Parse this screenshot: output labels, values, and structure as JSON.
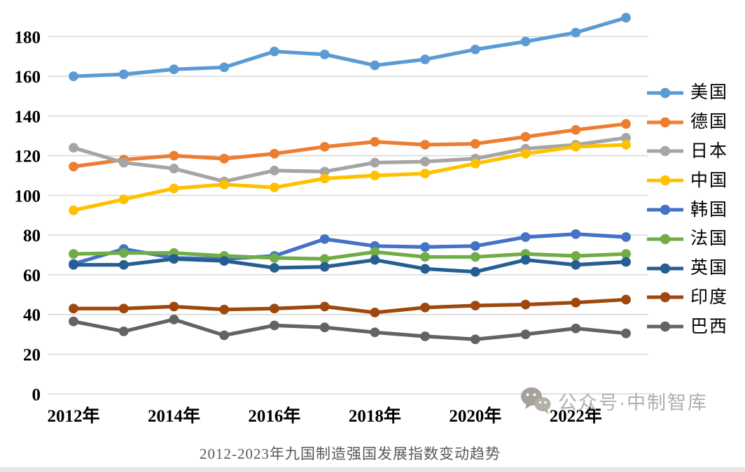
{
  "page": {
    "background": "#ffffff"
  },
  "chart_data": {
    "type": "line",
    "title": "2012-2023年九国制造强国发展指数变动趋势",
    "title_color": "#595959",
    "x": [
      2012,
      2013,
      2014,
      2015,
      2016,
      2017,
      2018,
      2019,
      2020,
      2021,
      2022,
      2023
    ],
    "x_tick_labels": [
      "2012年",
      "2014年",
      "2016年",
      "2018年",
      "2020年",
      "2022年"
    ],
    "y_ticks": [
      0,
      20,
      40,
      60,
      80,
      100,
      120,
      140,
      160,
      180
    ],
    "ylim": [
      0,
      195
    ],
    "grid": "horizontal",
    "grid_color": "#d6d6d6",
    "legend_position": "right",
    "marker": "circle",
    "series": [
      {
        "key": "usa",
        "name": "美国",
        "color": "#5B9BD5",
        "values": [
          160,
          161,
          163.5,
          164.5,
          172.5,
          171,
          165.5,
          168.5,
          173.5,
          177.5,
          182,
          189.5
        ]
      },
      {
        "key": "germany",
        "name": "德国",
        "color": "#ED7D31",
        "values": [
          114.5,
          118,
          120,
          118.5,
          121,
          124.5,
          127,
          125.5,
          126,
          129.5,
          133,
          136
        ]
      },
      {
        "key": "japan",
        "name": "日本",
        "color": "#A5A5A5",
        "values": [
          124,
          116.5,
          113.5,
          107,
          112.5,
          112,
          116.5,
          117,
          118.5,
          123.5,
          125.5,
          129
        ]
      },
      {
        "key": "china",
        "name": "中国",
        "color": "#FFC000",
        "values": [
          92.5,
          98,
          103.5,
          105.5,
          104,
          108.5,
          110,
          111,
          116,
          121,
          124.5,
          125.5
        ]
      },
      {
        "key": "korea",
        "name": "韩国",
        "color": "#4472C4",
        "values": [
          65.5,
          73,
          68.5,
          68,
          69.5,
          78,
          74.5,
          74,
          74.5,
          79,
          80.5,
          79
        ]
      },
      {
        "key": "france",
        "name": "法国",
        "color": "#70AD47",
        "values": [
          70.5,
          71,
          71,
          69.5,
          68.5,
          68,
          71.5,
          69,
          69,
          70.5,
          69.5,
          70.5
        ]
      },
      {
        "key": "uk",
        "name": "英国",
        "color": "#255E91",
        "values": [
          65,
          65,
          68,
          67,
          63.5,
          64,
          67.5,
          63,
          61.5,
          67.5,
          65,
          66.5
        ]
      },
      {
        "key": "india",
        "name": "印度",
        "color": "#9E480E",
        "values": [
          43,
          43,
          44,
          42.5,
          43,
          44,
          41,
          43.5,
          44.5,
          45,
          46,
          47.5
        ]
      },
      {
        "key": "brazil",
        "name": "巴西",
        "color": "#636363",
        "values": [
          36.5,
          31.5,
          37.5,
          29.5,
          34.5,
          33.5,
          31,
          29,
          27.5,
          30,
          33,
          30.5
        ]
      }
    ]
  },
  "watermark": {
    "icon": "wechat-icon",
    "text": "公众号·中制智库",
    "color": "#b3afa9"
  }
}
